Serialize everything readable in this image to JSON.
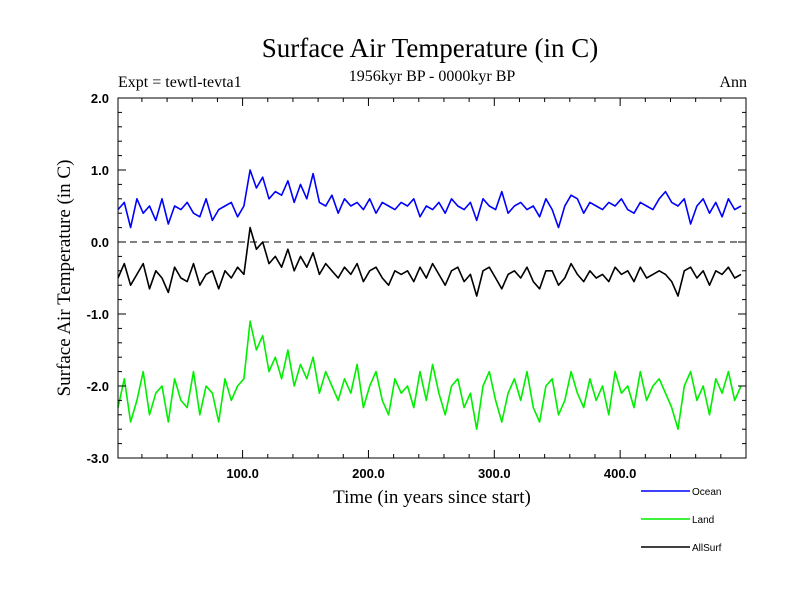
{
  "chart_data": {
    "type": "line",
    "title": "Surface Air Temperature (in C)",
    "subtitle": "1956kyr BP - 0000kyr BP",
    "experiment_label": "Expt = tewtl-tevta1",
    "season_label": "Ann",
    "xlabel": "Time (in years since start)",
    "ylabel": "Surface Air Temperature (in C)",
    "xlim": [
      1,
      500
    ],
    "ylim": [
      -3.0,
      2.0
    ],
    "x_ticks": [
      {
        "value": 100,
        "label": "100.0"
      },
      {
        "value": 200,
        "label": "200.0"
      },
      {
        "value": 300,
        "label": "300.0"
      },
      {
        "value": 400,
        "label": "400.0"
      }
    ],
    "y_ticks": [
      {
        "value": 2.0,
        "label": "2.0"
      },
      {
        "value": 1.0,
        "label": "1.0"
      },
      {
        "value": 0.0,
        "label": "0.0"
      },
      {
        "value": -1.0,
        "label": "-1.0"
      },
      {
        "value": -2.0,
        "label": "-2.0"
      },
      {
        "value": -3.0,
        "label": "-3.0"
      }
    ],
    "zero_line": {
      "value": 0.0,
      "style": "dashed"
    },
    "legend_position": "bottom-right",
    "series": [
      {
        "name": "Ocean",
        "color": "#0000ff",
        "x_start": 1,
        "x_step": 5,
        "values": [
          0.45,
          0.55,
          0.2,
          0.6,
          0.4,
          0.5,
          0.3,
          0.6,
          0.25,
          0.5,
          0.45,
          0.55,
          0.4,
          0.35,
          0.6,
          0.3,
          0.45,
          0.5,
          0.55,
          0.35,
          0.5,
          1.0,
          0.75,
          0.9,
          0.6,
          0.7,
          0.65,
          0.85,
          0.55,
          0.8,
          0.6,
          0.95,
          0.55,
          0.5,
          0.65,
          0.4,
          0.6,
          0.5,
          0.55,
          0.45,
          0.6,
          0.4,
          0.55,
          0.5,
          0.45,
          0.55,
          0.5,
          0.6,
          0.35,
          0.5,
          0.45,
          0.55,
          0.4,
          0.6,
          0.5,
          0.45,
          0.55,
          0.3,
          0.6,
          0.5,
          0.45,
          0.7,
          0.4,
          0.5,
          0.55,
          0.45,
          0.5,
          0.35,
          0.6,
          0.45,
          0.2,
          0.5,
          0.65,
          0.6,
          0.4,
          0.55,
          0.5,
          0.45,
          0.55,
          0.5,
          0.6,
          0.45,
          0.4,
          0.55,
          0.5,
          0.45,
          0.6,
          0.7,
          0.55,
          0.5,
          0.6,
          0.25,
          0.5,
          0.6,
          0.4,
          0.55,
          0.35,
          0.6,
          0.45,
          0.5
        ]
      },
      {
        "name": "Land",
        "color": "#00ee00",
        "x_start": 1,
        "x_step": 5,
        "values": [
          -2.3,
          -1.9,
          -2.5,
          -2.2,
          -1.8,
          -2.4,
          -2.1,
          -2.0,
          -2.5,
          -1.9,
          -2.2,
          -2.3,
          -1.8,
          -2.4,
          -2.0,
          -2.1,
          -2.5,
          -1.9,
          -2.2,
          -2.0,
          -1.9,
          -1.1,
          -1.5,
          -1.3,
          -1.8,
          -1.6,
          -1.9,
          -1.5,
          -2.0,
          -1.7,
          -1.9,
          -1.6,
          -2.1,
          -1.8,
          -2.0,
          -2.2,
          -1.9,
          -2.1,
          -1.7,
          -2.3,
          -2.0,
          -1.8,
          -2.2,
          -2.4,
          -1.9,
          -2.1,
          -2.0,
          -2.3,
          -1.8,
          -2.2,
          -1.7,
          -2.1,
          -2.4,
          -2.0,
          -1.9,
          -2.3,
          -2.1,
          -2.6,
          -2.0,
          -1.8,
          -2.2,
          -2.5,
          -2.1,
          -1.9,
          -2.2,
          -1.8,
          -2.3,
          -2.5,
          -2.0,
          -1.9,
          -2.4,
          -2.2,
          -1.8,
          -2.1,
          -2.3,
          -1.9,
          -2.2,
          -2.0,
          -2.4,
          -1.8,
          -2.1,
          -2.0,
          -2.3,
          -1.8,
          -2.2,
          -2.0,
          -1.9,
          -2.1,
          -2.3,
          -2.6,
          -2.0,
          -1.8,
          -2.2,
          -2.0,
          -2.4,
          -1.9,
          -2.1,
          -1.8,
          -2.2,
          -2.0
        ]
      },
      {
        "name": "AllSurf",
        "color": "#000000",
        "x_start": 1,
        "x_step": 5,
        "values": [
          -0.5,
          -0.3,
          -0.6,
          -0.45,
          -0.3,
          -0.65,
          -0.4,
          -0.5,
          -0.7,
          -0.35,
          -0.5,
          -0.55,
          -0.3,
          -0.6,
          -0.45,
          -0.4,
          -0.65,
          -0.4,
          -0.5,
          -0.35,
          -0.45,
          0.2,
          -0.1,
          0.0,
          -0.3,
          -0.2,
          -0.35,
          -0.1,
          -0.4,
          -0.2,
          -0.35,
          -0.15,
          -0.45,
          -0.3,
          -0.4,
          -0.5,
          -0.35,
          -0.45,
          -0.3,
          -0.55,
          -0.4,
          -0.35,
          -0.5,
          -0.6,
          -0.4,
          -0.45,
          -0.4,
          -0.55,
          -0.35,
          -0.5,
          -0.3,
          -0.45,
          -0.6,
          -0.4,
          -0.35,
          -0.55,
          -0.45,
          -0.75,
          -0.4,
          -0.35,
          -0.5,
          -0.65,
          -0.45,
          -0.4,
          -0.5,
          -0.35,
          -0.55,
          -0.65,
          -0.4,
          -0.4,
          -0.6,
          -0.5,
          -0.3,
          -0.45,
          -0.55,
          -0.4,
          -0.5,
          -0.45,
          -0.55,
          -0.35,
          -0.45,
          -0.4,
          -0.55,
          -0.35,
          -0.5,
          -0.45,
          -0.4,
          -0.45,
          -0.55,
          -0.75,
          -0.4,
          -0.35,
          -0.5,
          -0.4,
          -0.6,
          -0.4,
          -0.45,
          -0.35,
          -0.5,
          -0.45
        ]
      }
    ]
  }
}
